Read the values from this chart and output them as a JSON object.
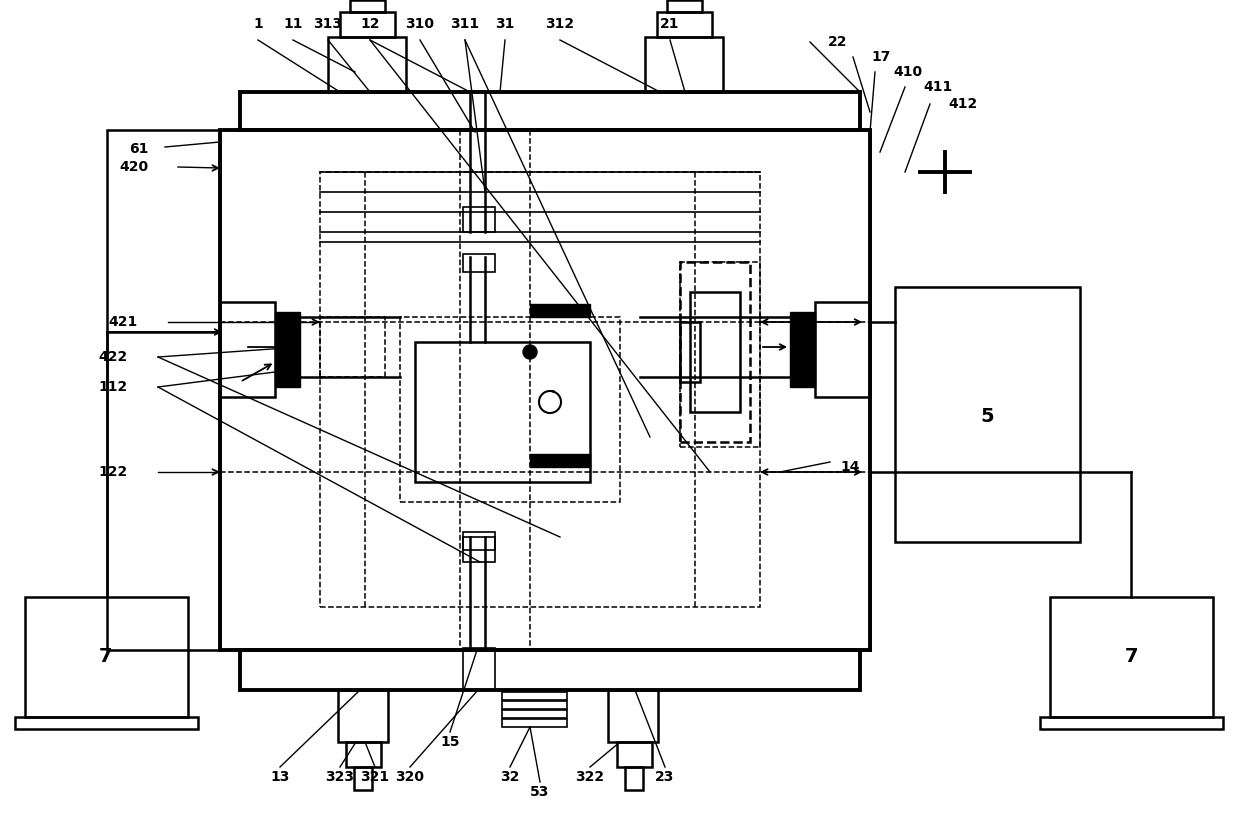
{
  "bg_color": "#ffffff",
  "lw_thick": 2.8,
  "lw_medium": 1.8,
  "lw_thin": 1.2,
  "lw_dashed": 1.1,
  "fig_width": 12.39,
  "fig_height": 8.32
}
